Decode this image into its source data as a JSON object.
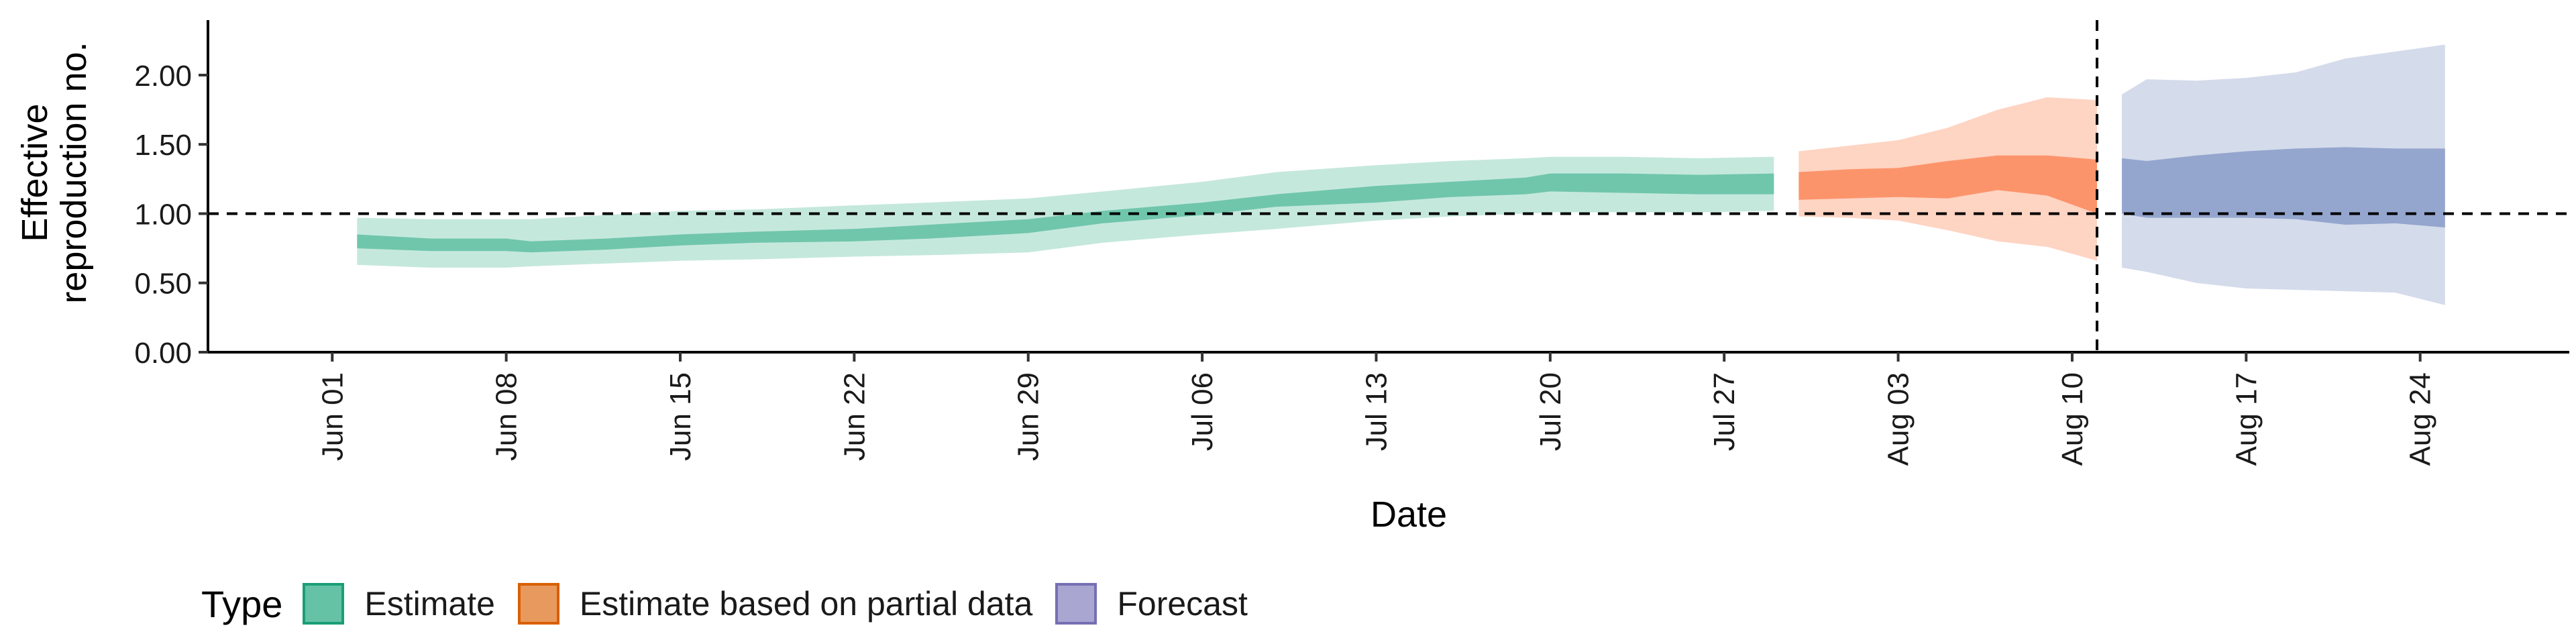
{
  "chart_data": {
    "type": "area",
    "xlabel": "Date",
    "ylabel": [
      "Effective",
      "reproduction no."
    ],
    "ylim": [
      0.0,
      2.3
    ],
    "yticks": [
      "0.00",
      "0.50",
      "1.00",
      "1.50",
      "2.00"
    ],
    "ytick_values": [
      0,
      0.5,
      1.0,
      1.5,
      2.0
    ],
    "xlim": [
      "2020-05-27",
      "2020-08-30"
    ],
    "xticks": [
      "Jun 01",
      "Jun 08",
      "Jun 15",
      "Jun 22",
      "Jun 29",
      "Jul 06",
      "Jul 13",
      "Jul 20",
      "Jul 27",
      "Aug 03",
      "Aug 10",
      "Aug 17",
      "Aug 24"
    ],
    "xtick_dates": [
      "2020-06-01",
      "2020-06-08",
      "2020-06-15",
      "2020-06-22",
      "2020-06-29",
      "2020-07-06",
      "2020-07-13",
      "2020-07-20",
      "2020-07-27",
      "2020-08-03",
      "2020-08-10",
      "2020-08-17",
      "2020-08-24"
    ],
    "reference_hline": 1.0,
    "reference_vline": "2020-08-11",
    "grid": false,
    "legend_position": "bottom-left",
    "legend_title": "Type",
    "series": [
      {
        "name": "Estimate",
        "color": "#66C2A5",
        "x": [
          "2020-06-02",
          "2020-06-05",
          "2020-06-08",
          "2020-06-09",
          "2020-06-12",
          "2020-06-15",
          "2020-06-18",
          "2020-06-22",
          "2020-06-25",
          "2020-06-29",
          "2020-07-02",
          "2020-07-06",
          "2020-07-09",
          "2020-07-13",
          "2020-07-16",
          "2020-07-19",
          "2020-07-20",
          "2020-07-23",
          "2020-07-26",
          "2020-07-29"
        ],
        "outer_lo": [
          0.63,
          0.61,
          0.61,
          0.62,
          0.64,
          0.66,
          0.67,
          0.69,
          0.7,
          0.72,
          0.79,
          0.85,
          0.89,
          0.95,
          0.98,
          1.0,
          1.01,
          1.01,
          1.01,
          1.02
        ],
        "outer_hi": [
          0.97,
          0.96,
          0.96,
          0.96,
          0.99,
          1.02,
          1.03,
          1.06,
          1.08,
          1.11,
          1.16,
          1.23,
          1.3,
          1.35,
          1.38,
          1.4,
          1.41,
          1.41,
          1.4,
          1.41
        ],
        "inner_lo": [
          0.75,
          0.73,
          0.73,
          0.72,
          0.74,
          0.77,
          0.79,
          0.8,
          0.82,
          0.86,
          0.93,
          0.99,
          1.05,
          1.08,
          1.12,
          1.14,
          1.16,
          1.15,
          1.14,
          1.14
        ],
        "inner_hi": [
          0.85,
          0.82,
          0.82,
          0.8,
          0.82,
          0.85,
          0.87,
          0.89,
          0.92,
          0.96,
          1.02,
          1.08,
          1.14,
          1.2,
          1.23,
          1.26,
          1.29,
          1.29,
          1.28,
          1.29
        ]
      },
      {
        "name": "Estimate based on partial data",
        "color": "#FC8D62",
        "x": [
          "2020-07-30",
          "2020-08-01",
          "2020-08-03",
          "2020-08-05",
          "2020-08-07",
          "2020-08-09",
          "2020-08-11"
        ],
        "outer_lo": [
          0.98,
          0.97,
          0.95,
          0.88,
          0.8,
          0.76,
          0.66
        ],
        "outer_hi": [
          1.45,
          1.49,
          1.53,
          1.62,
          1.75,
          1.84,
          1.82
        ],
        "inner_lo": [
          1.1,
          1.11,
          1.12,
          1.11,
          1.17,
          1.13,
          1.0
        ],
        "inner_hi": [
          1.3,
          1.32,
          1.33,
          1.38,
          1.42,
          1.42,
          1.39
        ]
      },
      {
        "name": "Forecast",
        "color": "#8DA0CB",
        "x": [
          "2020-08-12",
          "2020-08-13",
          "2020-08-15",
          "2020-08-17",
          "2020-08-19",
          "2020-08-21",
          "2020-08-23",
          "2020-08-25"
        ],
        "outer_lo": [
          0.61,
          0.58,
          0.5,
          0.46,
          0.45,
          0.44,
          0.43,
          0.34
        ],
        "outer_hi": [
          1.86,
          1.97,
          1.96,
          1.98,
          2.02,
          2.12,
          2.17,
          2.22
        ],
        "inner_lo": [
          1.0,
          0.97,
          0.97,
          0.97,
          0.96,
          0.92,
          0.93,
          0.9
        ],
        "inner_hi": [
          1.4,
          1.38,
          1.42,
          1.45,
          1.47,
          1.48,
          1.47,
          1.47
        ]
      }
    ]
  },
  "legend": {
    "title": "Type",
    "items": [
      {
        "label": "Estimate",
        "color": "#66C2A5",
        "border": "#1B9E77"
      },
      {
        "label": "Estimate based on partial data",
        "color": "#E89A5E",
        "border": "#D95F02"
      },
      {
        "label": "Forecast",
        "color": "#A9A6D1",
        "border": "#7570B3"
      }
    ]
  }
}
